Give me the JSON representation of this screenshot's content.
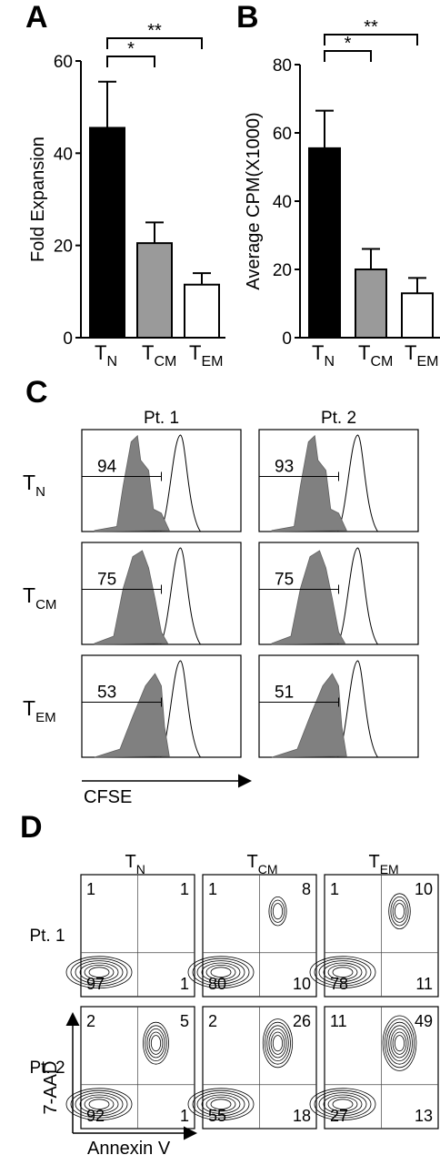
{
  "panels": {
    "A": "A",
    "B": "B",
    "C": "C",
    "D": "D"
  },
  "chart_data": [
    {
      "type": "bar",
      "panel": "A",
      "categories": [
        "N",
        "CM",
        "EM"
      ],
      "category_prefix": "T",
      "values": [
        45.5,
        20.5,
        11.5
      ],
      "errors": [
        10,
        4.5,
        2.5
      ],
      "colors": [
        "#000000",
        "#9a9a9a",
        "#ffffff"
      ],
      "ylabel": "Fold Expansion",
      "ylim": [
        0,
        60
      ],
      "yticks": [
        "0",
        "20",
        "40",
        "60"
      ],
      "significance": [
        {
          "from": 0,
          "to": 1,
          "label": "*"
        },
        {
          "from": 0,
          "to": 2,
          "label": "**"
        }
      ]
    },
    {
      "type": "bar",
      "panel": "B",
      "categories": [
        "N",
        "CM",
        "EM"
      ],
      "category_prefix": "T",
      "values": [
        55.5,
        20,
        13
      ],
      "errors": [
        11,
        6,
        4.5
      ],
      "colors": [
        "#000000",
        "#9a9a9a",
        "#ffffff"
      ],
      "ylabel": "Average CPM(X1000)",
      "ylim": [
        0,
        80
      ],
      "yticks": [
        "0",
        "20",
        "40",
        "60",
        "80"
      ],
      "significance": [
        {
          "from": 0,
          "to": 1,
          "label": "*"
        },
        {
          "from": 0,
          "to": 2,
          "label": "**"
        }
      ]
    }
  ],
  "panel_c": {
    "columns": [
      "Pt. 1",
      "Pt. 2"
    ],
    "rows": [
      {
        "label": "T",
        "sub": "N",
        "values": [
          "94",
          "93"
        ]
      },
      {
        "label": "T",
        "sub": "CM",
        "values": [
          "75",
          "75"
        ]
      },
      {
        "label": "T",
        "sub": "EM",
        "values": [
          "53",
          "51"
        ]
      }
    ],
    "xlabel": "CFSE"
  },
  "panel_d": {
    "columns": [
      {
        "label": "T",
        "sub": "N"
      },
      {
        "label": "T",
        "sub": "CM"
      },
      {
        "label": "T",
        "sub": "EM"
      }
    ],
    "rows": [
      {
        "label": "Pt. 1",
        "quadrants": [
          [
            "1",
            "1",
            "97",
            "1"
          ],
          [
            "1",
            "8",
            "80",
            "10"
          ],
          [
            "1",
            "10",
            "78",
            "11"
          ]
        ]
      },
      {
        "label": "Pt. 2",
        "quadrants": [
          [
            "2",
            "5",
            "92",
            "1"
          ],
          [
            "2",
            "26",
            "55",
            "18"
          ],
          [
            "11",
            "49",
            "27",
            "13"
          ]
        ]
      }
    ],
    "xlabel": "Annexin V",
    "ylabel": "7-AAD"
  }
}
